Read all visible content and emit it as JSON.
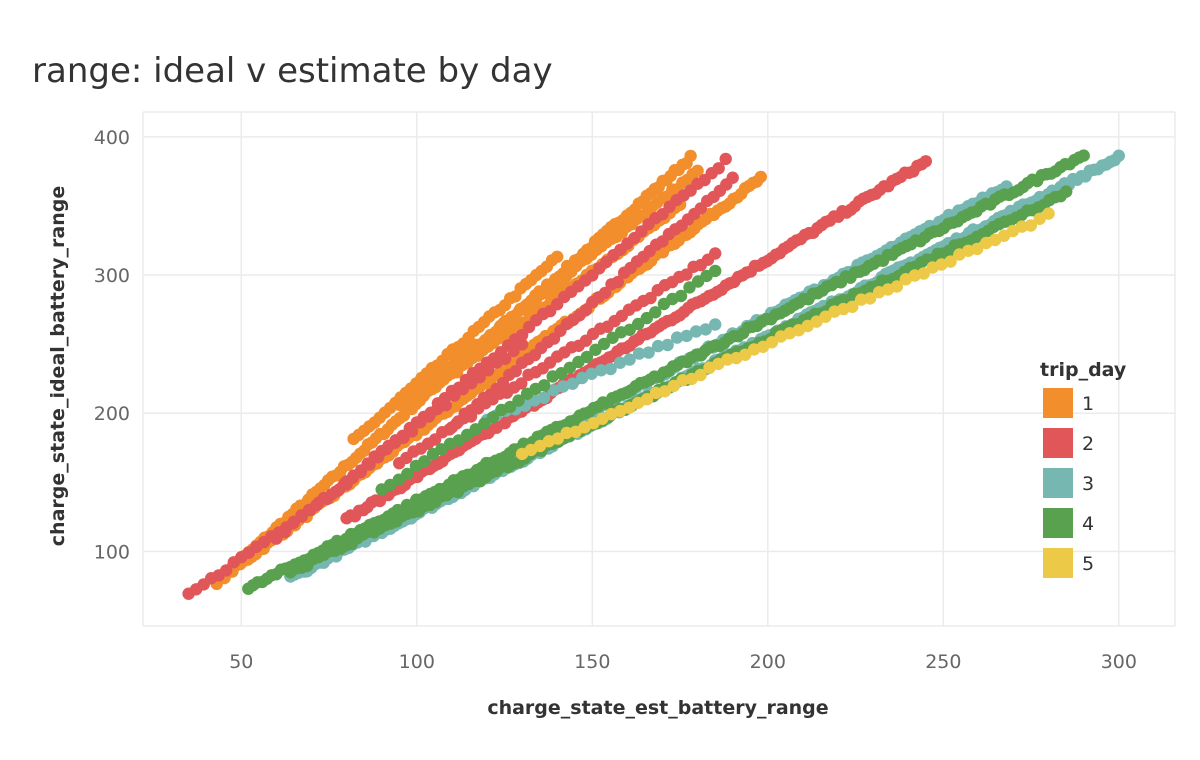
{
  "chart_data": {
    "type": "scatter",
    "title": "range: ideal v estimate by day",
    "xlabel": "charge_state_est_battery_range",
    "ylabel": "charge_state_ideal_battery_range",
    "xlim": [
      22,
      316
    ],
    "ylim": [
      46,
      418
    ],
    "x_ticks": [
      50,
      100,
      150,
      200,
      250,
      300
    ],
    "y_ticks": [
      100,
      200,
      300,
      400
    ],
    "grid": true,
    "legend": {
      "title": "trip_day",
      "position": "right"
    },
    "series": [
      {
        "name": "1",
        "color": "#f28e2b",
        "segments": [
          {
            "x": [
              43,
              178
            ],
            "y": [
              78,
              385
            ],
            "n": 120
          },
          {
            "x": [
              43,
              198
            ],
            "y": [
              78,
              370
            ],
            "n": 140
          },
          {
            "x": [
              82,
              140
            ],
            "y": [
              180,
              313
            ],
            "n": 40
          },
          {
            "x": [
              95,
              180
            ],
            "y": [
              205,
              375
            ],
            "n": 60
          },
          {
            "x": [
              110,
              175
            ],
            "y": [
              228,
              350
            ],
            "n": 45
          }
        ]
      },
      {
        "name": "2",
        "color": "#e15759",
        "segments": [
          {
            "x": [
              35,
              80
            ],
            "y": [
              68,
              150
            ],
            "n": 22
          },
          {
            "x": [
              80,
              245
            ],
            "y": [
              123,
              382
            ],
            "n": 140
          },
          {
            "x": [
              80,
              188
            ],
            "y": [
              150,
              383
            ],
            "n": 55
          },
          {
            "x": [
              95,
              185
            ],
            "y": [
              165,
              315
            ],
            "n": 45
          },
          {
            "x": [
              110,
              190
            ],
            "y": [
              190,
              370
            ],
            "n": 45
          },
          {
            "x": [
              60,
              130
            ],
            "y": [
              110,
              250
            ],
            "n": 30
          }
        ]
      },
      {
        "name": "3",
        "color": "#76b7b2",
        "segments": [
          {
            "x": [
              64,
              300
            ],
            "y": [
              81,
              385
            ],
            "n": 200
          },
          {
            "x": [
              64,
              268
            ],
            "y": [
              81,
              365
            ],
            "n": 150
          },
          {
            "x": [
              120,
              185
            ],
            "y": [
              195,
              265
            ],
            "n": 25
          }
        ]
      },
      {
        "name": "4",
        "color": "#59a14f",
        "segments": [
          {
            "x": [
              52,
              290
            ],
            "y": [
              73,
              387
            ],
            "n": 180
          },
          {
            "x": [
              64,
              285
            ],
            "y": [
              85,
              360
            ],
            "n": 140
          },
          {
            "x": [
              90,
              185
            ],
            "y": [
              145,
              302
            ],
            "n": 40
          }
        ]
      },
      {
        "name": "5",
        "color": "#edc948",
        "segments": [
          {
            "x": [
              130,
              280
            ],
            "y": [
              170,
              343
            ],
            "n": 60
          }
        ]
      }
    ]
  }
}
